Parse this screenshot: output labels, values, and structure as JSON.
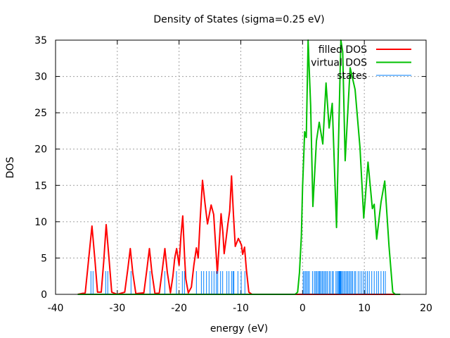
{
  "chart_data": {
    "type": "line",
    "title": "Density of States (sigma=0.25 eV)",
    "xlabel": "energy (eV)",
    "ylabel": "DOS",
    "xlim": [
      -40,
      20
    ],
    "ylim": [
      0,
      35
    ],
    "xticks": [
      -40,
      -30,
      -20,
      -10,
      0,
      10,
      20
    ],
    "yticks": [
      0,
      5,
      10,
      15,
      20,
      25,
      30,
      35
    ],
    "grid": true,
    "legend_position": "top-right",
    "series": [
      {
        "name": "filled DOS",
        "color": "#ff0000",
        "x": [
          -36.4,
          -35.2,
          -34.8,
          -34.1,
          -33.6,
          -33.2,
          -32.6,
          -32.2,
          -31.8,
          -31.3,
          -30.9,
          -30.0,
          -28.8,
          -28.3,
          -27.9,
          -27.5,
          -27.0,
          -25.7,
          -25.2,
          -24.8,
          -24.4,
          -23.9,
          -23.2,
          -22.7,
          -22.3,
          -21.9,
          -21.4,
          -21.0,
          -20.7,
          -20.4,
          -20.0,
          -19.7,
          -19.4,
          -19.1,
          -18.9,
          -18.5,
          -18.0,
          -17.6,
          -17.2,
          -16.9,
          -16.6,
          -16.2,
          -15.8,
          -15.4,
          -14.8,
          -14.4,
          -14.1,
          -13.8,
          -13.5,
          -13.2,
          -12.9,
          -12.7,
          -12.4,
          -12.1,
          -11.8,
          -11.5,
          -11.2,
          -10.9,
          -10.4,
          -9.9,
          -9.7,
          -9.4,
          -9.1,
          -8.7,
          -8.2,
          15.8
        ],
        "y": [
          0,
          0.2,
          3.5,
          9.4,
          4.5,
          0.3,
          0.3,
          4.5,
          9.6,
          4.5,
          0.3,
          0,
          0.3,
          3.5,
          6.3,
          3.0,
          0.1,
          0.2,
          3.5,
          6.3,
          3.0,
          0.1,
          0.2,
          3.5,
          6.3,
          3.0,
          0.2,
          2.5,
          5.0,
          6.3,
          4.0,
          8.0,
          10.8,
          5.0,
          2.1,
          0.2,
          1.0,
          4.0,
          6.4,
          5.0,
          10.0,
          15.7,
          12.5,
          9.7,
          12.3,
          11.0,
          7.0,
          2.9,
          7.0,
          11.1,
          8.5,
          5.6,
          7.5,
          9.7,
          11.5,
          16.3,
          11.0,
          6.6,
          7.7,
          6.8,
          5.5,
          6.5,
          3.4,
          0.3,
          0,
          0
        ]
      },
      {
        "name": "virtual DOS",
        "color": "#00c000",
        "x": [
          -36.4,
          -1.2,
          -0.8,
          -0.5,
          -0.2,
          0.0,
          0.34,
          0.6,
          0.9,
          1.3,
          1.67,
          2.24,
          2.7,
          3.27,
          3.8,
          4.3,
          4.8,
          5.5,
          6.2,
          6.5,
          6.9,
          7.7,
          8.5,
          9.3,
          9.9,
          10.6,
          11.3,
          11.6,
          12.0,
          12.7,
          13.3,
          14.0,
          14.6,
          15.0,
          15.8
        ],
        "y": [
          0,
          0,
          0.3,
          3.0,
          8.0,
          14.7,
          22.4,
          21.6,
          35.0,
          26.0,
          12.1,
          21.1,
          23.7,
          20.7,
          29.1,
          22.9,
          26.3,
          9.2,
          35.0,
          33.4,
          18.4,
          31.2,
          28.2,
          20.2,
          10.5,
          18.2,
          11.8,
          12.4,
          7.6,
          12.7,
          15.6,
          6.6,
          0.3,
          0,
          0
        ]
      },
      {
        "name": "states",
        "color": "#0080ff",
        "stick_height": 3.2,
        "x": [
          -34.27,
          -33.93,
          -31.88,
          -31.54,
          -27.78,
          -24.71,
          -22.31,
          -20.42,
          -19.47,
          -19.13,
          -17.19,
          -16.39,
          -16.01,
          -15.56,
          -15.14,
          -14.72,
          -14.34,
          -13.97,
          -13.74,
          -13.28,
          -12.94,
          -12.26,
          -11.92,
          -11.5,
          -11.27,
          -11.12,
          -10.47,
          -9.94,
          -9.34,
          0.1,
          0.3,
          0.5,
          0.7,
          0.9,
          1.1,
          1.6,
          1.9,
          2.1,
          2.3,
          2.5,
          2.7,
          2.8,
          3.0,
          3.2,
          3.4,
          3.6,
          3.8,
          4.0,
          4.3,
          4.5,
          4.8,
          5.0,
          5.4,
          5.6,
          5.8,
          5.9,
          6.0,
          6.1,
          6.2,
          6.3,
          6.5,
          6.7,
          6.9,
          7.1,
          7.3,
          7.5,
          7.7,
          7.9,
          8.1,
          8.4,
          8.6,
          9.0,
          9.3,
          9.6,
          9.9,
          10.2,
          10.5,
          10.8,
          11.2,
          11.6,
          12.0,
          12.3,
          12.7,
          13.1,
          13.4
        ]
      }
    ]
  }
}
